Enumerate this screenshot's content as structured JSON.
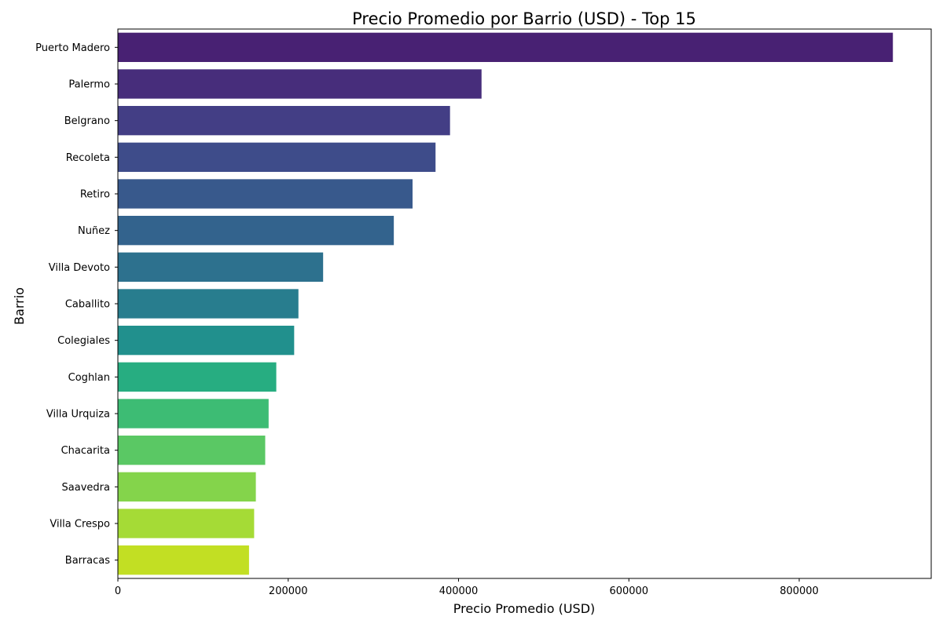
{
  "chart_data": {
    "type": "bar",
    "orientation": "horizontal",
    "title": "Precio Promedio por Barrio (USD) - Top 15",
    "xlabel": "Precio Promedio (USD)",
    "ylabel": "Barrio",
    "categories": [
      "Puerto Madero",
      "Palermo",
      "Belgrano",
      "Recoleta",
      "Retiro",
      "Nuñez",
      "Villa Devoto",
      "Caballito",
      "Colegiales",
      "Coghlan",
      "Villa Urquiza",
      "Chacarita",
      "Saavedra",
      "Villa Crespo",
      "Barracas"
    ],
    "values": [
      910000,
      427000,
      390000,
      373000,
      346000,
      324000,
      241000,
      212000,
      207000,
      186000,
      177000,
      173000,
      162000,
      160000,
      154000
    ],
    "colors": [
      "#482173",
      "#472d7b",
      "#433e85",
      "#3e4c8a",
      "#38598c",
      "#33638d",
      "#2d718e",
      "#287d8e",
      "#21908d",
      "#27ad81",
      "#3dbc74",
      "#5ac864",
      "#84d44b",
      "#a5db36",
      "#c2df23"
    ],
    "xlim": [
      0,
      955000
    ],
    "xticks": [
      0,
      200000,
      400000,
      600000,
      800000
    ],
    "xtick_labels": [
      "0",
      "200000",
      "400000",
      "600000",
      "800000"
    ],
    "grid": false,
    "legend": "none"
  }
}
